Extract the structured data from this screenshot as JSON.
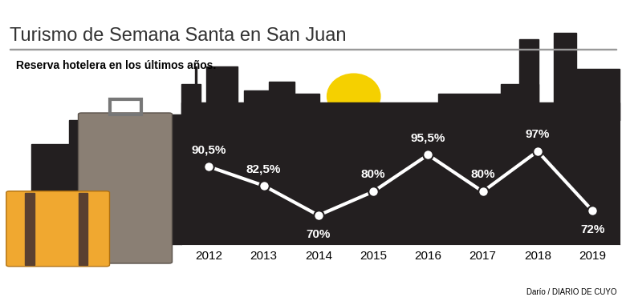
{
  "chart_data": {
    "type": "line",
    "title": "Turismo de Semana Santa en San Juan",
    "subtitle": "Reserva hotelera en los últimos años.",
    "credit": "Darío / DIARIO DE CUYO",
    "categories": [
      "2012",
      "2013",
      "2014",
      "2015",
      "2016",
      "2017",
      "2018",
      "2019"
    ],
    "values": [
      90.5,
      82.5,
      70,
      80,
      95.5,
      80,
      97,
      72
    ],
    "value_labels": [
      "90,5%",
      "82,5%",
      "70%",
      "80%",
      "95,5%",
      "80%",
      "97%",
      "72%"
    ],
    "data_labels": true,
    "color": "#ffffff",
    "marker": "o",
    "line_style": "solid",
    "ylim": [
      58,
      110
    ],
    "yticks": [],
    "tick_labels": "x",
    "grid": false
  }
}
